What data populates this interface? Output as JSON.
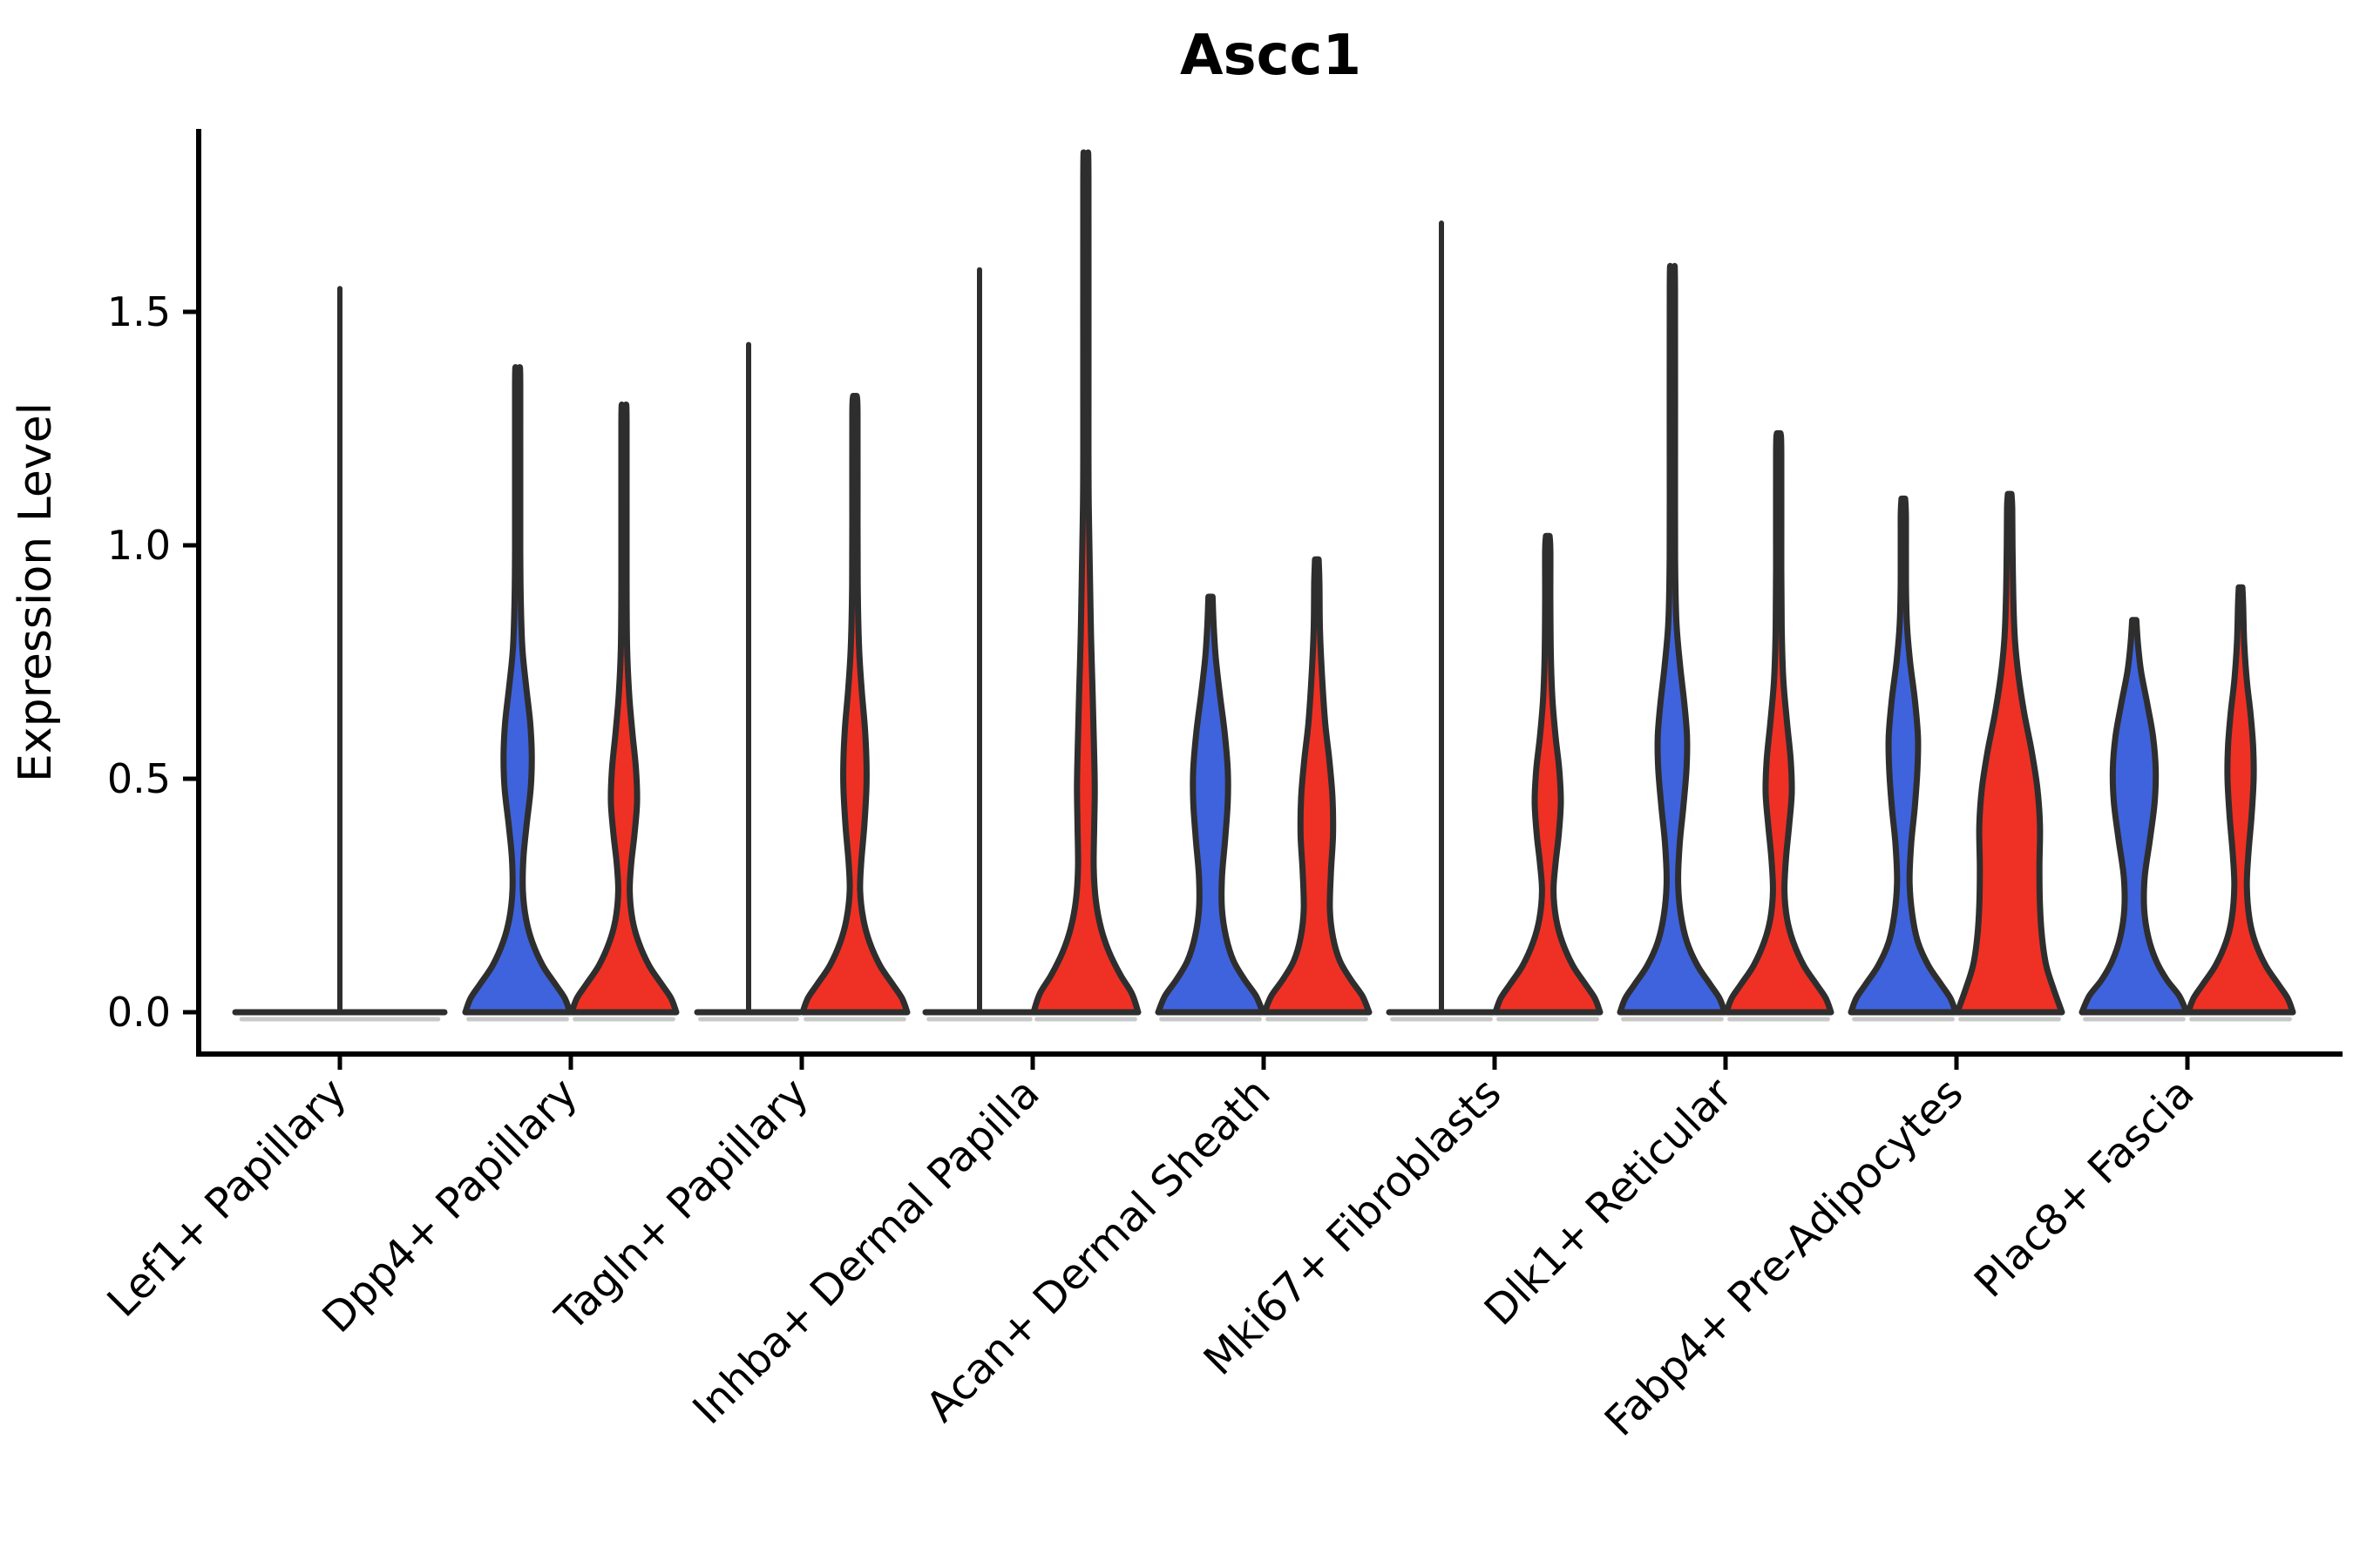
{
  "page": {
    "background": "#ffffff"
  },
  "chart_data": {
    "type": "violin",
    "title": "Ascc1",
    "ylabel": "Expression Level",
    "xlabel": "",
    "ylim": [
      0,
      1.89
    ],
    "yticks": [
      0.0,
      0.5,
      1.0,
      1.5
    ],
    "ytick_labels": [
      "0.0",
      "0.5",
      "1.0",
      "1.5"
    ],
    "grid": false,
    "legend": "none",
    "x_label_rotation_deg": 45,
    "categories": [
      "Lef1+ Papillary",
      "Dpp4+ Papillary",
      "Tagln+ Papillary",
      "Inhba+ Dermal Papilla",
      "Acan+ Dermal Sheath",
      "Mki67+ Fibroblasts",
      "Dlk1+ Reticular",
      "Fabp4+ Pre-Adipocytes",
      "Plac8+ Fascia"
    ],
    "colors": {
      "blue": "#3F63DC",
      "red": "#EE3124",
      "edge": "#2E2E2E",
      "axis": "#000000",
      "shadow": "#C9C9C9"
    },
    "violins": [
      {
        "category": "Lef1+ Papillary",
        "side": "single",
        "color": "none",
        "shape": "flat",
        "max": 1.55,
        "half_width": 120
      },
      {
        "category": "Dpp4+ Papillary",
        "side": "left",
        "color": "blue",
        "shape": "body",
        "max": 1.38,
        "profile": [
          [
            0,
            1.0
          ],
          [
            0.03,
            0.9
          ],
          [
            0.06,
            0.72
          ],
          [
            0.1,
            0.48
          ],
          [
            0.15,
            0.28
          ],
          [
            0.2,
            0.16
          ],
          [
            0.26,
            0.1
          ],
          [
            0.33,
            0.11
          ],
          [
            0.4,
            0.17
          ],
          [
            0.48,
            0.25
          ],
          [
            0.55,
            0.27
          ],
          [
            0.62,
            0.24
          ],
          [
            0.7,
            0.16
          ],
          [
            0.78,
            0.09
          ],
          [
            0.88,
            0.06
          ],
          [
            1.0,
            0.05
          ],
          [
            1.34,
            0.05
          ],
          [
            1.38,
            0.035
          ]
        ]
      },
      {
        "category": "Dpp4+ Papillary",
        "side": "right",
        "color": "red",
        "shape": "body",
        "max": 1.3,
        "profile": [
          [
            0,
            1.0
          ],
          [
            0.03,
            0.9
          ],
          [
            0.06,
            0.72
          ],
          [
            0.1,
            0.48
          ],
          [
            0.15,
            0.28
          ],
          [
            0.2,
            0.16
          ],
          [
            0.26,
            0.11
          ],
          [
            0.32,
            0.14
          ],
          [
            0.38,
            0.2
          ],
          [
            0.45,
            0.25
          ],
          [
            0.52,
            0.23
          ],
          [
            0.6,
            0.16
          ],
          [
            0.68,
            0.1
          ],
          [
            0.78,
            0.06
          ],
          [
            0.92,
            0.05
          ],
          [
            1.26,
            0.05
          ],
          [
            1.3,
            0.035
          ]
        ]
      },
      {
        "category": "Tagln+ Papillary",
        "side": "left",
        "color": "blue",
        "shape": "flat",
        "max": 1.43,
        "half_width": 59
      },
      {
        "category": "Tagln+ Papillary",
        "side": "right",
        "color": "red",
        "shape": "body",
        "max": 1.32,
        "profile": [
          [
            0,
            1.0
          ],
          [
            0.03,
            0.9
          ],
          [
            0.06,
            0.72
          ],
          [
            0.1,
            0.48
          ],
          [
            0.15,
            0.28
          ],
          [
            0.2,
            0.16
          ],
          [
            0.26,
            0.1
          ],
          [
            0.32,
            0.12
          ],
          [
            0.4,
            0.18
          ],
          [
            0.48,
            0.22
          ],
          [
            0.54,
            0.22
          ],
          [
            0.61,
            0.19
          ],
          [
            0.69,
            0.13
          ],
          [
            0.78,
            0.08
          ],
          [
            0.9,
            0.055
          ],
          [
            1.05,
            0.05
          ],
          [
            1.28,
            0.05
          ],
          [
            1.32,
            0.035
          ]
        ]
      },
      {
        "category": "Inhba+ Dermal Papilla",
        "side": "left",
        "color": "blue",
        "shape": "flat",
        "max": 1.59,
        "half_width": 62
      },
      {
        "category": "Inhba+ Dermal Papilla",
        "side": "right",
        "color": "red",
        "shape": "body",
        "max": 1.83,
        "profile": [
          [
            0,
            1.0
          ],
          [
            0.04,
            0.88
          ],
          [
            0.08,
            0.66
          ],
          [
            0.13,
            0.44
          ],
          [
            0.18,
            0.29
          ],
          [
            0.24,
            0.19
          ],
          [
            0.31,
            0.15
          ],
          [
            0.4,
            0.16
          ],
          [
            0.48,
            0.17
          ],
          [
            0.57,
            0.155
          ],
          [
            0.68,
            0.13
          ],
          [
            0.8,
            0.1
          ],
          [
            0.92,
            0.08
          ],
          [
            1.05,
            0.06
          ],
          [
            1.2,
            0.05
          ],
          [
            1.78,
            0.05
          ],
          [
            1.83,
            0.035
          ]
        ]
      },
      {
        "category": "Acan+ Dermal Sheath",
        "side": "left",
        "color": "blue",
        "shape": "body",
        "max": 0.89,
        "profile": [
          [
            0,
            1.0
          ],
          [
            0.035,
            0.87
          ],
          [
            0.07,
            0.65
          ],
          [
            0.11,
            0.44
          ],
          [
            0.16,
            0.3
          ],
          [
            0.22,
            0.22
          ],
          [
            0.29,
            0.22
          ],
          [
            0.37,
            0.28
          ],
          [
            0.45,
            0.33
          ],
          [
            0.52,
            0.33
          ],
          [
            0.6,
            0.27
          ],
          [
            0.68,
            0.18
          ],
          [
            0.76,
            0.1
          ],
          [
            0.83,
            0.06
          ],
          [
            0.89,
            0.04
          ]
        ]
      },
      {
        "category": "Acan+ Dermal Sheath",
        "side": "right",
        "color": "red",
        "shape": "body",
        "max": 0.97,
        "profile": [
          [
            0,
            1.0
          ],
          [
            0.035,
            0.87
          ],
          [
            0.07,
            0.65
          ],
          [
            0.11,
            0.44
          ],
          [
            0.16,
            0.31
          ],
          [
            0.22,
            0.25
          ],
          [
            0.3,
            0.27
          ],
          [
            0.38,
            0.31
          ],
          [
            0.46,
            0.3
          ],
          [
            0.54,
            0.24
          ],
          [
            0.62,
            0.16
          ],
          [
            0.72,
            0.1
          ],
          [
            0.82,
            0.06
          ],
          [
            0.92,
            0.05
          ],
          [
            0.97,
            0.035
          ]
        ]
      },
      {
        "category": "Mki67+ Fibroblasts",
        "side": "left",
        "color": "blue",
        "shape": "flat",
        "max": 1.69,
        "half_width": 60
      },
      {
        "category": "Mki67+ Fibroblasts",
        "side": "right",
        "color": "red",
        "shape": "body",
        "max": 1.02,
        "profile": [
          [
            0,
            1.0
          ],
          [
            0.03,
            0.9
          ],
          [
            0.06,
            0.72
          ],
          [
            0.1,
            0.48
          ],
          [
            0.15,
            0.28
          ],
          [
            0.2,
            0.16
          ],
          [
            0.26,
            0.11
          ],
          [
            0.32,
            0.15
          ],
          [
            0.38,
            0.21
          ],
          [
            0.45,
            0.25
          ],
          [
            0.52,
            0.22
          ],
          [
            0.59,
            0.15
          ],
          [
            0.67,
            0.09
          ],
          [
            0.76,
            0.06
          ],
          [
            0.88,
            0.05
          ],
          [
            0.99,
            0.05
          ],
          [
            1.02,
            0.035
          ]
        ]
      },
      {
        "category": "Dlk1+ Reticular",
        "side": "left",
        "color": "blue",
        "shape": "body",
        "max": 1.59,
        "profile": [
          [
            0,
            1.0
          ],
          [
            0.03,
            0.9
          ],
          [
            0.06,
            0.72
          ],
          [
            0.1,
            0.48
          ],
          [
            0.15,
            0.28
          ],
          [
            0.21,
            0.16
          ],
          [
            0.28,
            0.11
          ],
          [
            0.36,
            0.14
          ],
          [
            0.44,
            0.21
          ],
          [
            0.52,
            0.27
          ],
          [
            0.59,
            0.28
          ],
          [
            0.66,
            0.23
          ],
          [
            0.74,
            0.15
          ],
          [
            0.83,
            0.08
          ],
          [
            0.94,
            0.055
          ],
          [
            1.1,
            0.05
          ],
          [
            1.55,
            0.05
          ],
          [
            1.59,
            0.035
          ]
        ]
      },
      {
        "category": "Dlk1+ Reticular",
        "side": "right",
        "color": "red",
        "shape": "body",
        "max": 1.24,
        "profile": [
          [
            0,
            1.0
          ],
          [
            0.03,
            0.9
          ],
          [
            0.06,
            0.72
          ],
          [
            0.1,
            0.48
          ],
          [
            0.15,
            0.28
          ],
          [
            0.2,
            0.16
          ],
          [
            0.26,
            0.11
          ],
          [
            0.33,
            0.14
          ],
          [
            0.4,
            0.2
          ],
          [
            0.47,
            0.25
          ],
          [
            0.54,
            0.23
          ],
          [
            0.62,
            0.16
          ],
          [
            0.71,
            0.09
          ],
          [
            0.81,
            0.06
          ],
          [
            0.95,
            0.05
          ],
          [
            1.2,
            0.05
          ],
          [
            1.24,
            0.035
          ]
        ]
      },
      {
        "category": "Fabp4+ Pre-Adipocytes",
        "side": "left",
        "color": "blue",
        "shape": "body",
        "max": 1.1,
        "profile": [
          [
            0,
            1.0
          ],
          [
            0.03,
            0.9
          ],
          [
            0.06,
            0.72
          ],
          [
            0.1,
            0.48
          ],
          [
            0.15,
            0.28
          ],
          [
            0.21,
            0.17
          ],
          [
            0.28,
            0.12
          ],
          [
            0.36,
            0.15
          ],
          [
            0.44,
            0.22
          ],
          [
            0.52,
            0.27
          ],
          [
            0.59,
            0.28
          ],
          [
            0.67,
            0.22
          ],
          [
            0.75,
            0.13
          ],
          [
            0.83,
            0.07
          ],
          [
            0.92,
            0.05
          ],
          [
            1.06,
            0.05
          ],
          [
            1.1,
            0.035
          ]
        ]
      },
      {
        "category": "Fabp4+ Pre-Adipocytes",
        "side": "right",
        "color": "red",
        "shape": "body",
        "max": 1.11,
        "profile": [
          [
            0,
            1.0
          ],
          [
            0.05,
            0.84
          ],
          [
            0.1,
            0.7
          ],
          [
            0.16,
            0.62
          ],
          [
            0.23,
            0.58
          ],
          [
            0.31,
            0.57
          ],
          [
            0.4,
            0.58
          ],
          [
            0.48,
            0.53
          ],
          [
            0.56,
            0.42
          ],
          [
            0.64,
            0.28
          ],
          [
            0.72,
            0.17
          ],
          [
            0.8,
            0.1
          ],
          [
            0.89,
            0.07
          ],
          [
            1.0,
            0.055
          ],
          [
            1.08,
            0.05
          ],
          [
            1.11,
            0.035
          ]
        ]
      },
      {
        "category": "Plac8+ Fascia",
        "side": "left",
        "color": "blue",
        "shape": "body",
        "max": 0.84,
        "profile": [
          [
            0,
            1.0
          ],
          [
            0.035,
            0.86
          ],
          [
            0.07,
            0.62
          ],
          [
            0.11,
            0.42
          ],
          [
            0.16,
            0.27
          ],
          [
            0.22,
            0.19
          ],
          [
            0.29,
            0.2
          ],
          [
            0.37,
            0.3
          ],
          [
            0.45,
            0.39
          ],
          [
            0.52,
            0.41
          ],
          [
            0.59,
            0.36
          ],
          [
            0.66,
            0.25
          ],
          [
            0.73,
            0.13
          ],
          [
            0.79,
            0.07
          ],
          [
            0.84,
            0.04
          ]
        ]
      },
      {
        "category": "Plac8+ Fascia",
        "side": "right",
        "color": "red",
        "shape": "body",
        "max": 0.91,
        "profile": [
          [
            0,
            1.0
          ],
          [
            0.03,
            0.9
          ],
          [
            0.06,
            0.72
          ],
          [
            0.1,
            0.48
          ],
          [
            0.15,
            0.28
          ],
          [
            0.2,
            0.17
          ],
          [
            0.27,
            0.12
          ],
          [
            0.34,
            0.15
          ],
          [
            0.42,
            0.21
          ],
          [
            0.5,
            0.25
          ],
          [
            0.57,
            0.24
          ],
          [
            0.64,
            0.19
          ],
          [
            0.71,
            0.12
          ],
          [
            0.79,
            0.07
          ],
          [
            0.87,
            0.05
          ],
          [
            0.91,
            0.035
          ]
        ]
      }
    ]
  }
}
